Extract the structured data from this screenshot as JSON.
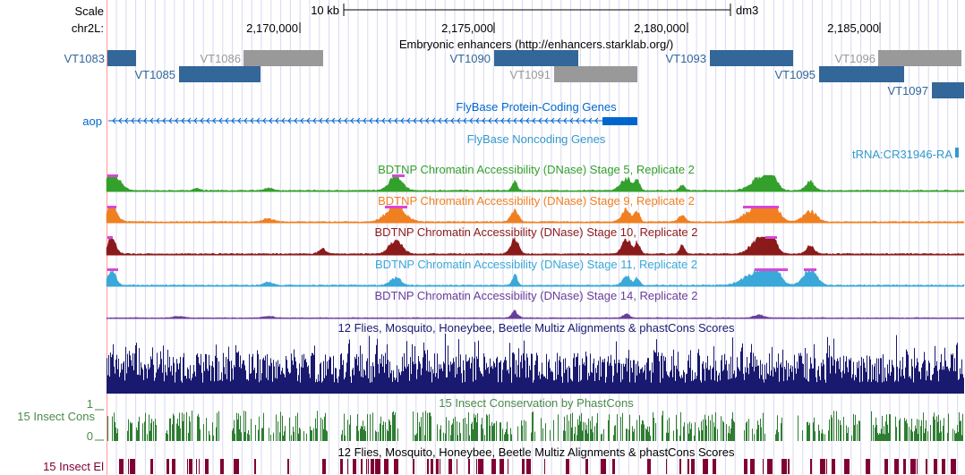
{
  "ruler": {
    "scale_label": "Scale",
    "scale_value": "10 kb",
    "assembly": "dm3",
    "chrom_label": "chr2L:",
    "ticks": [
      "2,170,000",
      "2,175,000",
      "2,180,000",
      "2,185,000"
    ]
  },
  "enhancers": {
    "title": "Embryonic enhancers (http://enhancers.starklab.org/)",
    "items": [
      {
        "name": "VT1083",
        "color": "#336699"
      },
      {
        "name": "VT1085",
        "color": "#336699"
      },
      {
        "name": "VT1086",
        "color": "#999999"
      },
      {
        "name": "VT1090",
        "color": "#336699"
      },
      {
        "name": "VT1091",
        "color": "#999999"
      },
      {
        "name": "VT1093",
        "color": "#336699"
      },
      {
        "name": "VT1095",
        "color": "#336699"
      },
      {
        "name": "VT1096",
        "color": "#999999"
      },
      {
        "name": "VT1097",
        "color": "#336699"
      }
    ]
  },
  "genes": {
    "coding_title": "FlyBase Protein-Coding Genes",
    "coding_gene": "aop",
    "noncoding_title": "FlyBase Noncoding Genes",
    "noncoding_gene": "tRNA:CR31946-RA",
    "color": "#0066cc",
    "noncoding_color": "#3399cc"
  },
  "dnase": {
    "tracks": [
      {
        "title": "BDTNP Chromatin Accessibility (DNase) Stage 5, Replicate 2",
        "color": "#33a02c"
      },
      {
        "title": "BDTNP Chromatin Accessibility (DNase) Stage 9, Replicate 2",
        "color": "#f07f21"
      },
      {
        "title": "BDTNP Chromatin Accessibility (DNase) Stage 10, Replicate 2",
        "color": "#8b1a1a"
      },
      {
        "title": "BDTNP Chromatin Accessibility (DNase) Stage 11, Replicate 2",
        "color": "#3aa8d8"
      },
      {
        "title": "BDTNP Chromatin Accessibility (DNase) Stage 14, Replicate 2",
        "color": "#6a3d9a"
      }
    ],
    "clip_color": "#d946d9"
  },
  "multiz": {
    "title": "12 Flies, Mosquito, Honeybee, Beetle Multiz Alignments & phastCons Scores",
    "color": "#191970"
  },
  "phastcons": {
    "title": "15 Insect Conservation by PhastCons",
    "side_label": "15 Insect Cons",
    "scale_max": "1",
    "scale_min": "0",
    "color": "#2e7d32",
    "label_color": "#4a8a4a"
  },
  "elements": {
    "title": "12 Flies, Mosquito, Honeybee, Beetle Multiz Alignments & phastCons Scores",
    "side_label": "15 Insect El",
    "color": "#800033"
  }
}
